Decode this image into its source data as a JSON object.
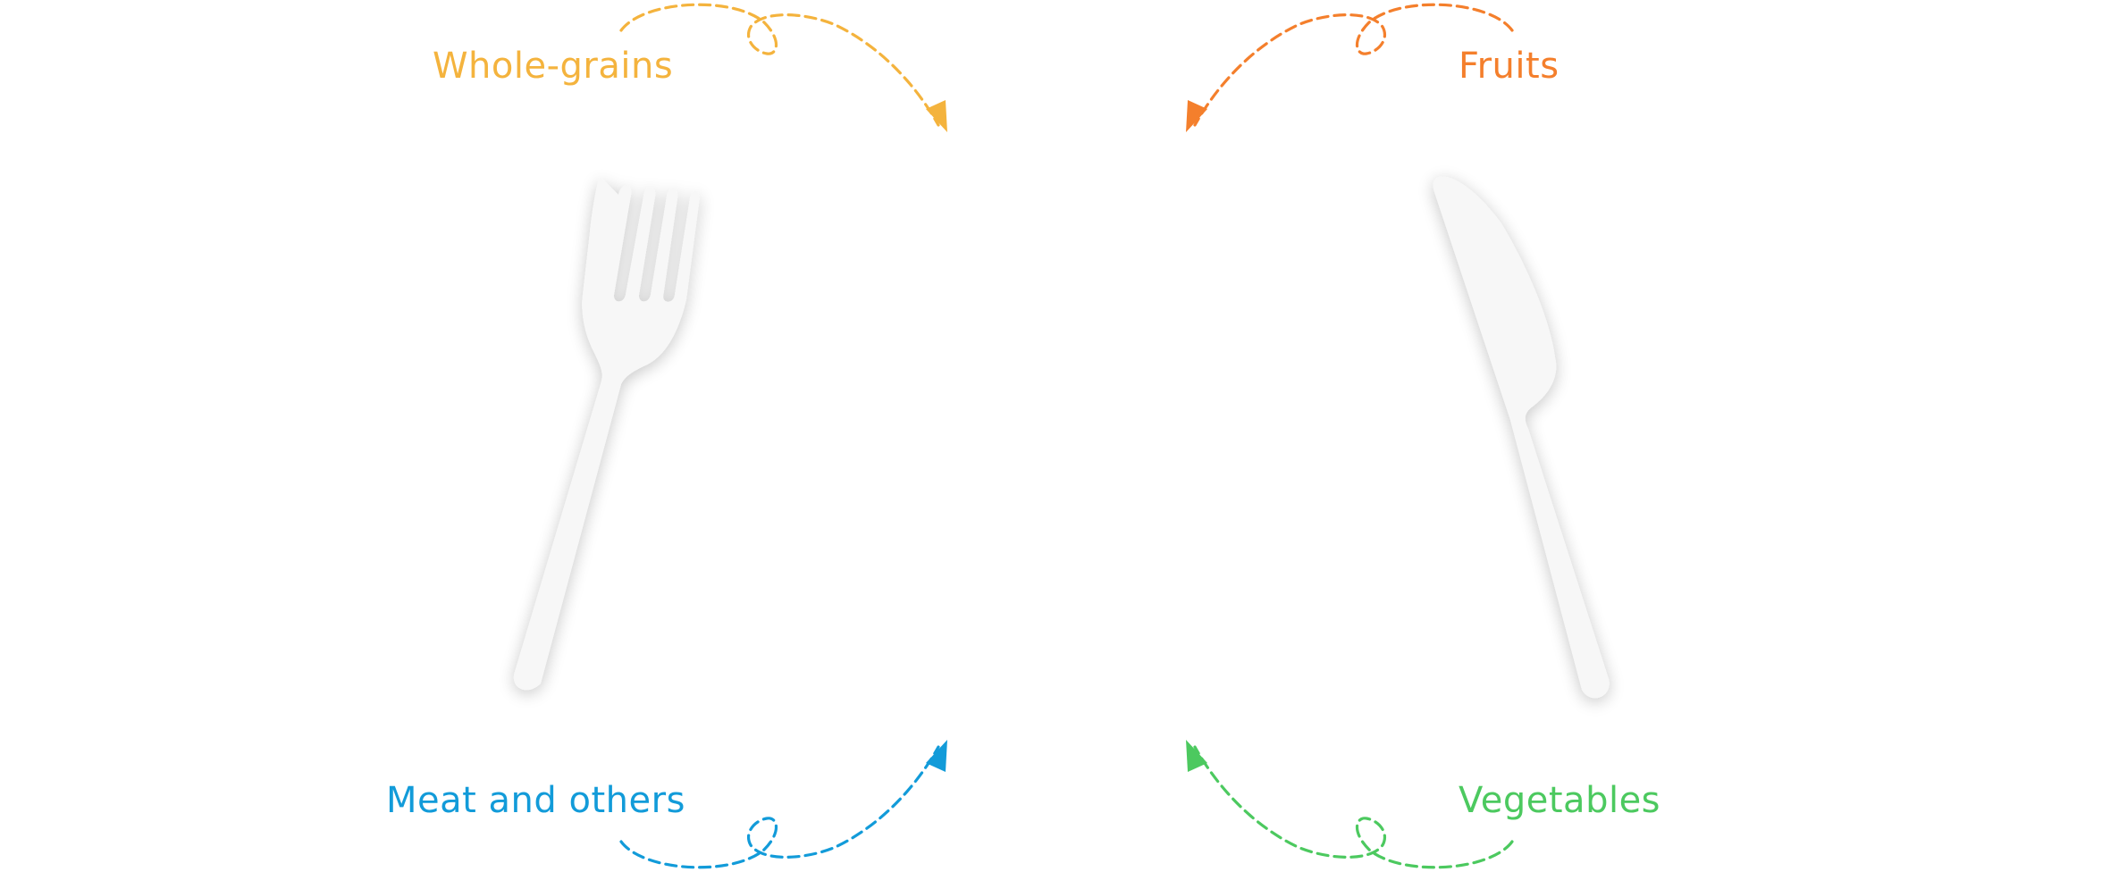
{
  "labels": {
    "whole_grains": "Whole-grains",
    "fruits": "Fruits",
    "meat_and_others": "Meat and others",
    "vegetables": "Vegetables"
  },
  "colors": {
    "whole_grains": "#F4B33D",
    "fruits": "#F47F2C",
    "meat_and_others": "#129BD9",
    "vegetables": "#4CC95F",
    "utensil": "#F7F7F7",
    "utensil_shadow": "#E2E2E2"
  },
  "icons": {
    "fork": "fork-icon",
    "knife": "knife-icon"
  }
}
